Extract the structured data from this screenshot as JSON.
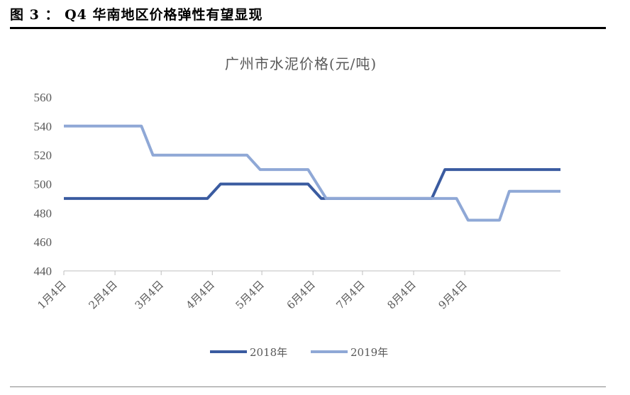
{
  "header": {
    "caption": "图 3 ： Q4 华南地区价格弹性有望显现"
  },
  "chart_data": {
    "type": "line",
    "title": "广州市水泥价格(元/吨)",
    "xlabel": "",
    "ylabel": "",
    "ylim": [
      440,
      560
    ],
    "yticks": [
      440,
      460,
      480,
      500,
      520,
      540,
      560
    ],
    "xlim": [
      "1月4日",
      "11月1日"
    ],
    "x_tick_labels": [
      "1月4日",
      "2月4日",
      "3月4日",
      "4月4日",
      "5月4日",
      "6月4日",
      "7月4日",
      "8月4日",
      "9月4日"
    ],
    "grid": false,
    "legend_position": "bottom",
    "series": [
      {
        "name": "2018年",
        "color": "#3a5ba0",
        "points": [
          [
            "1月4日",
            490
          ],
          [
            "4月1日",
            490
          ],
          [
            "4月9日",
            500
          ],
          [
            "6月1日",
            500
          ],
          [
            "6月9日",
            490
          ],
          [
            "8月15日",
            490
          ],
          [
            "8月23日",
            510
          ],
          [
            "11月1日",
            510
          ]
        ]
      },
      {
        "name": "2019年",
        "color": "#8fa8d6",
        "points": [
          [
            "1月4日",
            540
          ],
          [
            "2月20日",
            540
          ],
          [
            "2月27日",
            520
          ],
          [
            "4月25日",
            520
          ],
          [
            "5月3日",
            510
          ],
          [
            "6月1日",
            510
          ],
          [
            "6月12日",
            490
          ],
          [
            "8月30日",
            490
          ],
          [
            "9月6日",
            475
          ],
          [
            "9月25日",
            475
          ],
          [
            "10月1日",
            495
          ],
          [
            "11月1日",
            495
          ]
        ]
      }
    ]
  }
}
